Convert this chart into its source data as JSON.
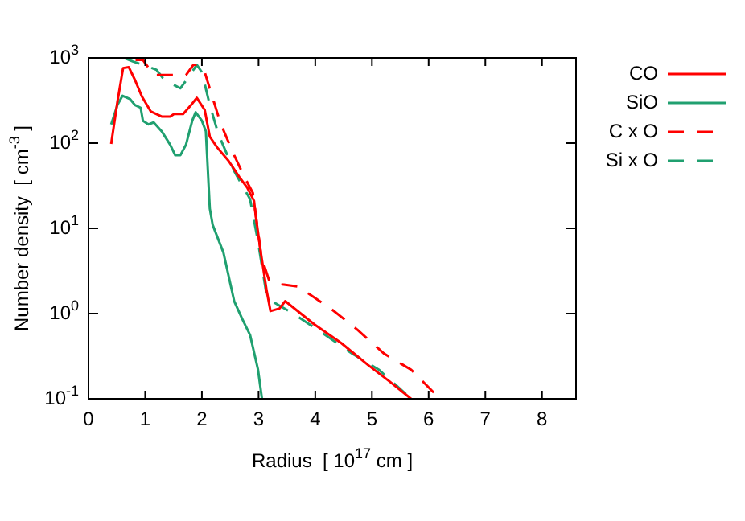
{
  "chart_data": {
    "type": "line",
    "xlabel": "Radius  [ 10$^{17}$ cm ]",
    "ylabel": "Number density  [ cm$^{-3}$ ]",
    "xlim": [
      0,
      8.6
    ],
    "xticks": [
      0,
      1,
      2,
      3,
      4,
      5,
      6,
      7,
      8
    ],
    "ylim": [
      0.1,
      1000
    ],
    "yticks": [
      {
        "value": 0.1,
        "label": "10$^{-1}$"
      },
      {
        "value": 1,
        "label": "10$^{0}$"
      },
      {
        "value": 10,
        "label": "10$^{1}$"
      },
      {
        "value": 100,
        "label": "10$^{2}$"
      },
      {
        "value": 1000,
        "label": "10$^{3}$"
      }
    ],
    "log": "y",
    "grid": false,
    "legend": "right",
    "marker": "none",
    "series": [
      {
        "name": "CO",
        "color": "#ff0000",
        "line_style": "solid",
        "x": [
          0.4,
          0.51,
          0.61,
          0.71,
          0.82,
          0.94,
          1.1,
          1.29,
          1.44,
          1.51,
          1.67,
          1.81,
          1.91,
          2.05,
          2.14,
          2.27,
          2.47,
          2.66,
          2.8,
          2.92,
          2.95,
          3.04,
          3.14,
          3.21,
          3.37,
          3.47,
          3.98,
          4.46,
          4.93,
          5.31,
          5.69
        ],
        "values": [
          98,
          305,
          760,
          780,
          550,
          355,
          235,
          205,
          205,
          220,
          220,
          280,
          340,
          245,
          119,
          89,
          62,
          40,
          30,
          21,
          14,
          5.2,
          1.9,
          1.07,
          1.15,
          1.4,
          0.75,
          0.45,
          0.25,
          0.16,
          0.1
        ]
      },
      {
        "name": "SiO",
        "color": "#20a070",
        "line_style": "solid",
        "x": [
          0.4,
          0.51,
          0.6,
          0.73,
          0.82,
          0.92,
          0.96,
          1.06,
          1.15,
          1.29,
          1.44,
          1.53,
          1.62,
          1.72,
          1.83,
          1.89,
          2.0,
          2.07,
          2.14,
          2.19,
          2.38,
          2.57,
          2.71,
          2.85,
          2.99,
          3.06
        ],
        "values": [
          166,
          280,
          360,
          330,
          280,
          260,
          183,
          166,
          175,
          138,
          96,
          72,
          72,
          96,
          183,
          230,
          183,
          138,
          17,
          11,
          5.2,
          1.4,
          0.87,
          0.56,
          0.22,
          0.1
        ]
      },
      {
        "name": "C x O",
        "color": "#ff0000",
        "line_style": "dashed",
        "x": [
          0.83,
          0.96,
          1.15,
          1.47,
          1.72,
          1.85,
          1.95,
          2.05,
          2.33,
          2.57,
          2.75,
          2.9,
          3.05,
          3.19,
          3.42,
          3.7,
          4.27,
          4.74,
          5.21,
          5.69,
          6.2
        ],
        "values": [
          945,
          945,
          630,
          630,
          630,
          830,
          830,
          680,
          170,
          72,
          40,
          26,
          4.6,
          2.4,
          2.2,
          2.07,
          1.15,
          0.65,
          0.34,
          0.22,
          0.1
        ]
      },
      {
        "name": "Si x O",
        "color": "#20a070",
        "line_style": "dashed",
        "x": [
          0.63,
          0.78,
          0.96,
          1.2,
          1.34,
          1.62,
          1.76,
          1.91,
          2.0,
          2.14,
          2.29,
          2.57,
          2.85,
          2.99,
          3.14,
          3.28,
          3.61,
          4.18,
          4.65,
          5.12,
          5.69
        ],
        "values": [
          1000,
          910,
          830,
          725,
          550,
          440,
          590,
          830,
          680,
          280,
          128,
          47,
          22,
          7,
          1.66,
          1.34,
          1.0,
          0.56,
          0.34,
          0.22,
          0.1
        ]
      }
    ]
  }
}
